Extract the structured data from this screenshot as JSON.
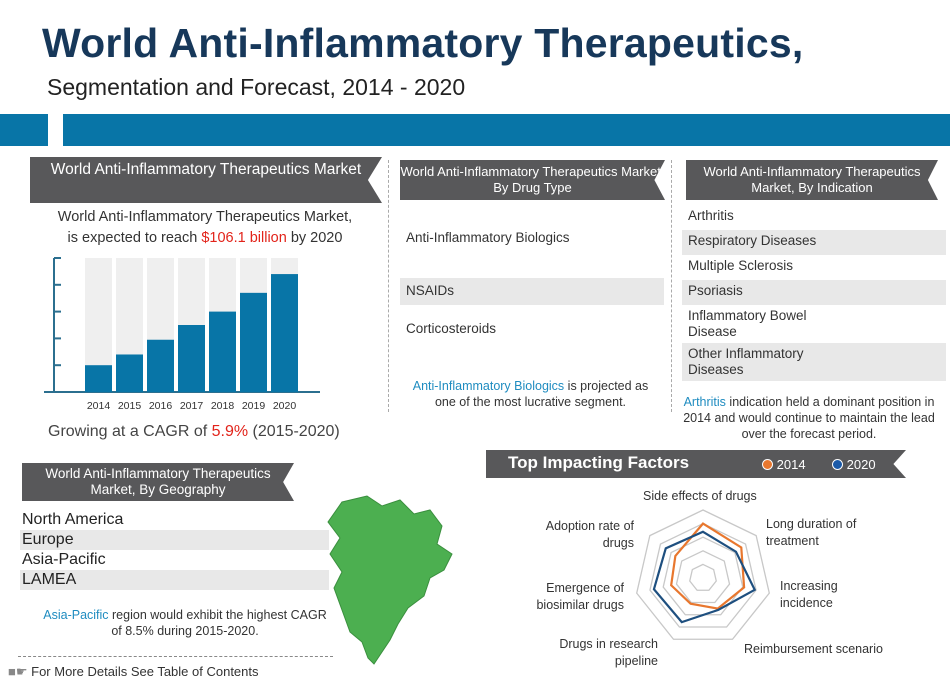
{
  "header": {
    "title": "World Anti-Inflammatory Therapeutics,",
    "subtitle": "Segmentation and Forecast, 2014 - 2020"
  },
  "market": {
    "ribbon": "World Anti-Inflammatory Therapeutics Market",
    "text_line1": "World Anti-Inflammatory Therapeutics Market,",
    "text_pre": "is expected to reach ",
    "text_value": "$106.1 billion",
    "text_post": " by 2020",
    "cagr_pre": "Growing at a CAGR of ",
    "cagr_value": "5.9%",
    "cagr_post": " (2015-2020)"
  },
  "drug_type": {
    "ribbon": "World Anti-Inflammatory Therapeutics Market, By Drug Type",
    "items": [
      "Anti-Inflammatory Biologics",
      "NSAIDs",
      "Corticosteroids"
    ],
    "note_hl": "Anti-Inflammatory Biologics",
    "note_rest": " is projected as one of the most lucrative segment."
  },
  "indication": {
    "ribbon": "World Anti-Inflammatory Therapeutics Market, By Indication",
    "items": [
      "Arthritis",
      "Respiratory Diseases",
      "Multiple Sclerosis",
      "Psoriasis",
      "Inflammatory Bowel Disease",
      "Other Inflammatory Diseases"
    ],
    "note_hl": "Arthritis",
    "note_rest": " indication held a dominant position in 2014 and would continue to maintain the lead over the forecast period."
  },
  "geography": {
    "ribbon": "World Anti-Inflammatory Therapeutics Market, By Geography",
    "items": [
      "North America",
      "Europe",
      "Asia-Pacific",
      "LAMEA"
    ],
    "note_hl": "Asia-Pacific",
    "note_rest": " region would exhibit the highest CAGR of 8.5% during 2015-2020.",
    "map_color": "#4caf50"
  },
  "factors": {
    "ribbon": "Top Impacting Factors",
    "legend": [
      "2014",
      "2020"
    ]
  },
  "footer": {
    "link": "For More Details See Table of Contents"
  },
  "colors": {
    "accent": "#0875a7",
    "ribbon": "#58585a",
    "highlight_red": "#e2231a",
    "series_2014": "#e8772e",
    "series_2020": "#1e4f7f"
  },
  "chart_data": [
    {
      "type": "bar",
      "categories": [
        "2014",
        "2015",
        "2016",
        "2017",
        "2018",
        "2019",
        "2020"
      ],
      "values": [
        1.0,
        1.4,
        1.95,
        2.5,
        3.0,
        3.7,
        4.4
      ],
      "ylim": [
        0,
        5
      ],
      "grid": false,
      "background_bars": true
    },
    {
      "type": "radar",
      "axes": [
        "Side effects of drugs",
        "Long duration of treatment",
        "Increasing incidence",
        "Reimbursement scenario",
        "Drugs in research pipeline",
        "Emergence of biosimilar drugs",
        "Adoption rate of drugs"
      ],
      "rlim": [
        0,
        5
      ],
      "series": [
        {
          "name": "2014",
          "values": [
            4.0,
            3.6,
            3.1,
            2.5,
            2.1,
            2.4,
            2.6
          ]
        },
        {
          "name": "2020",
          "values": [
            3.4,
            3.1,
            3.9,
            2.6,
            3.6,
            3.7,
            3.5
          ]
        }
      ],
      "legend": "top-right"
    }
  ]
}
